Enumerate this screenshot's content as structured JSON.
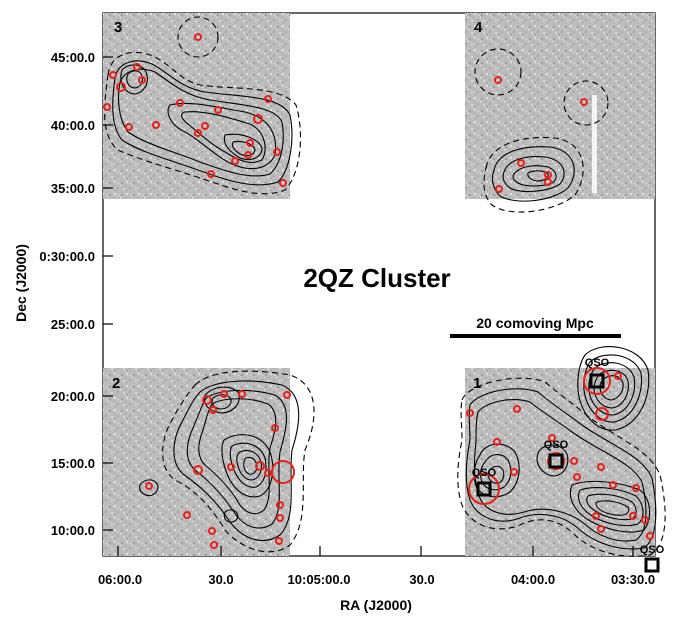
{
  "figure": {
    "title": "2QZ Cluster",
    "xlabel": "RA (J2000)",
    "ylabel": "Dec (J2000)",
    "x_ticks": [
      "06:00.0",
      "30.0",
      "10:05:00.0",
      "30.0",
      "04:00.0",
      "03:30.0"
    ],
    "y_ticks": [
      "45:00.0",
      "40:00.0",
      "35:00.0",
      "0:30:00.0",
      "25:00.0",
      "20:00.0",
      "15:00.0",
      "10:00.0"
    ],
    "panels": [
      "1",
      "2",
      "3",
      "4"
    ],
    "scale_bar_label": "20 comoving Mpc",
    "qso_label": "QSO",
    "colors": {
      "sources": "#e8201a",
      "contours": "#000000",
      "field_bg": "#bdbdbd"
    }
  }
}
